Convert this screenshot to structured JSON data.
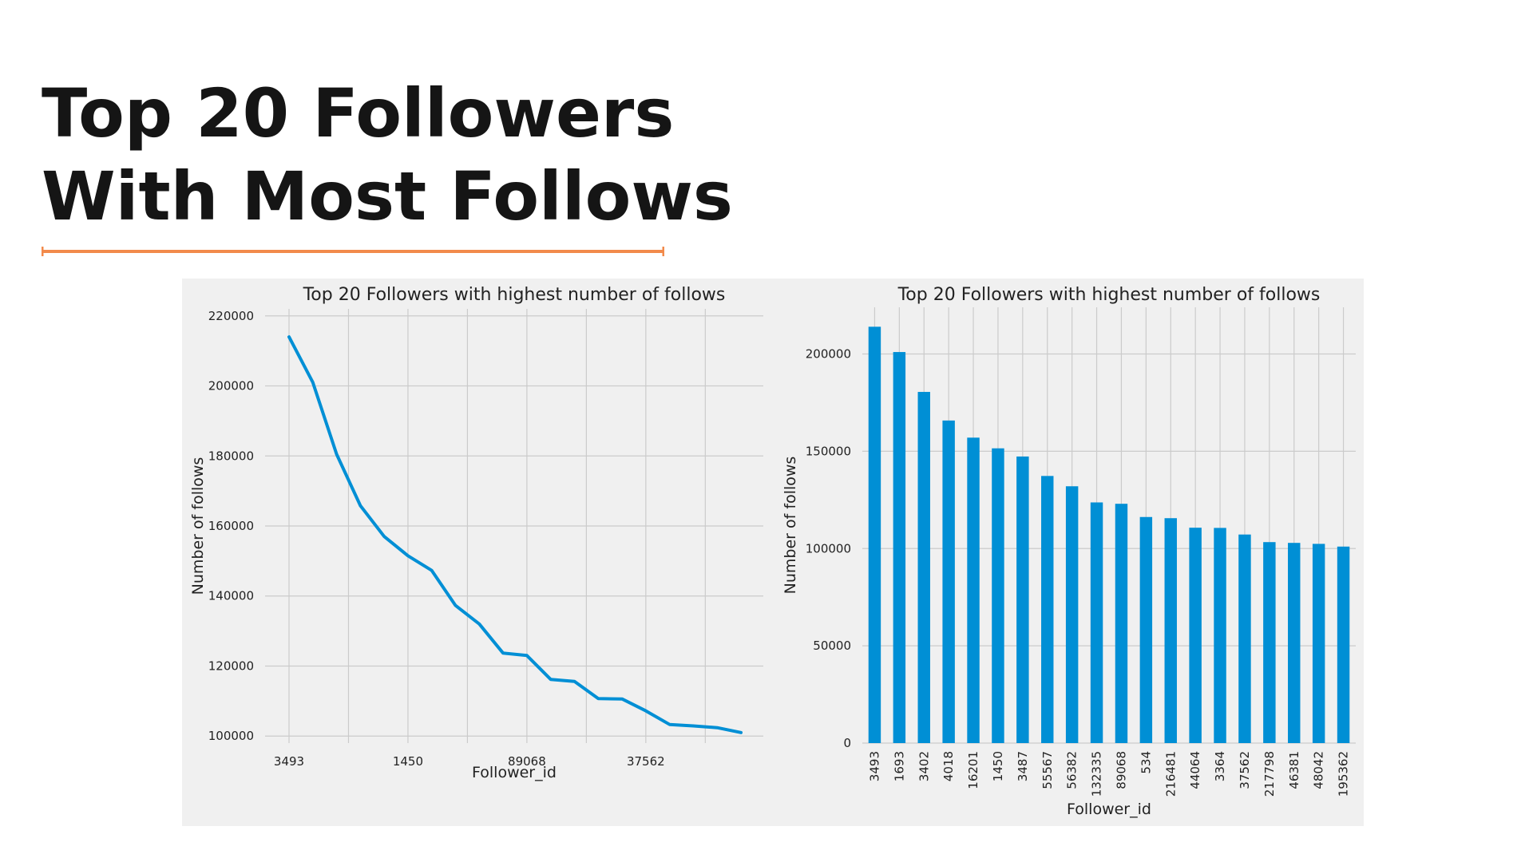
{
  "slide": {
    "title_lines": [
      "Top 20 Followers",
      "With Most Follows"
    ],
    "accent_color": "#f28a4b"
  },
  "chart_data": [
    {
      "type": "line",
      "title": "Top 20 Followers with highest number of  follows",
      "xlabel": "Follower_id",
      "ylabel": "Number of follows",
      "x": [
        "3493",
        "1693",
        "3402",
        "4018",
        "16201",
        "1450",
        "3487",
        "55567",
        "56382",
        "132335",
        "89068",
        "534",
        "216481",
        "44064",
        "3364",
        "37562",
        "217798",
        "46381",
        "48042",
        "195362"
      ],
      "xticklabels_shown": {
        "0": "3493",
        "5": "1450",
        "10": "89068",
        "15": "37562"
      },
      "values": [
        214000,
        201000,
        180500,
        165800,
        157000,
        151500,
        147300,
        137300,
        132000,
        123700,
        123000,
        116200,
        115600,
        110700,
        110600,
        107200,
        103300,
        102900,
        102400,
        101000
      ],
      "yticks": [
        100000,
        120000,
        140000,
        160000,
        180000,
        200000,
        220000
      ],
      "ylim": [
        98000,
        222000
      ],
      "grid": true,
      "color": "#008fd5"
    },
    {
      "type": "bar",
      "title": "Top 20 Followers with highest number of  follows",
      "xlabel": "Follower_id",
      "ylabel": "Number of follows",
      "categories": [
        "3493",
        "1693",
        "3402",
        "4018",
        "16201",
        "1450",
        "3487",
        "55567",
        "56382",
        "132335",
        "89068",
        "534",
        "216481",
        "44064",
        "3364",
        "37562",
        "217798",
        "46381",
        "48042",
        "195362"
      ],
      "values": [
        214000,
        201000,
        180500,
        165800,
        157000,
        151500,
        147300,
        137300,
        132000,
        123700,
        123000,
        116200,
        115600,
        110700,
        110600,
        107200,
        103300,
        102900,
        102400,
        101000
      ],
      "yticks": [
        0,
        50000,
        100000,
        150000,
        200000
      ],
      "ylim": [
        0,
        224000
      ],
      "grid": true,
      "color": "#008fd5"
    }
  ]
}
